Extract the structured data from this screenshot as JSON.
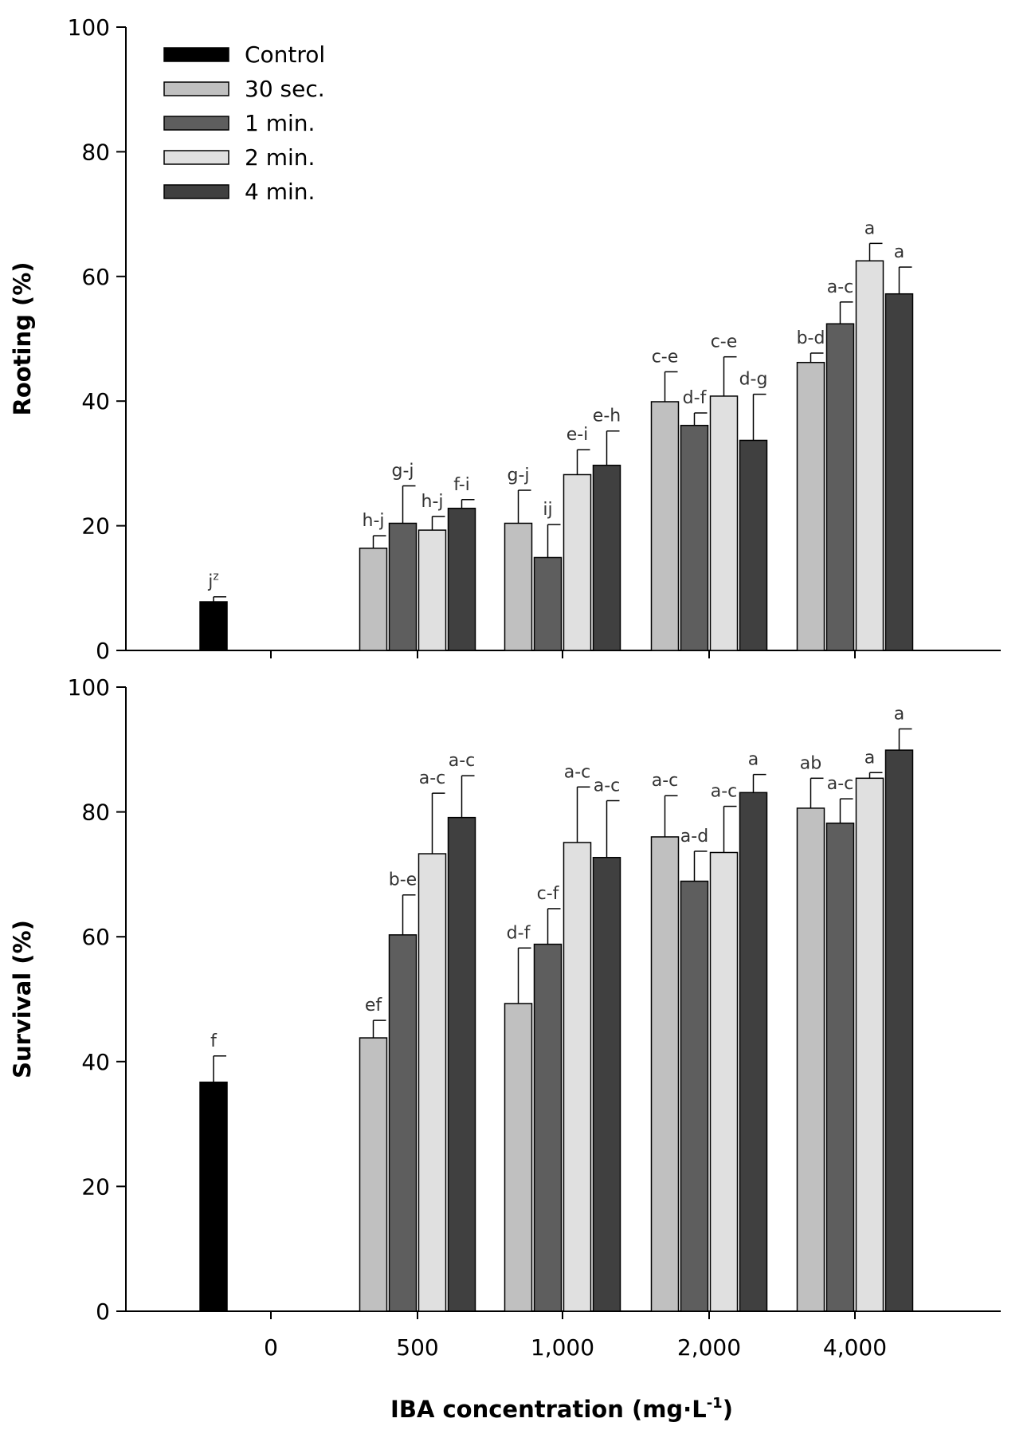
{
  "chart_data": [
    {
      "type": "bar",
      "panel": "top",
      "ylabel": "Rooting (%)",
      "ylim": [
        0,
        100
      ],
      "yticks": [
        "0",
        "20",
        "40",
        "60",
        "80",
        "100"
      ],
      "categories": [
        "0",
        "500",
        "1,000",
        "2,000",
        "4,000"
      ],
      "legend": {
        "placement": "top-left",
        "entries": [
          "Control",
          "30 sec.",
          "1 min.",
          "2 min.",
          "4 min."
        ]
      },
      "series": [
        {
          "name": "Control",
          "color": "#000000",
          "values": [
            7.8,
            null,
            null,
            null,
            null
          ],
          "errors": [
            0.8,
            null,
            null,
            null,
            null
          ],
          "labels": [
            "jz",
            null,
            null,
            null,
            null
          ]
        },
        {
          "name": "30 sec.",
          "color": "#c0c0c0",
          "values": [
            null,
            16.4,
            20.4,
            39.9,
            46.2
          ],
          "errors": [
            null,
            2.0,
            5.3,
            4.8,
            1.5
          ],
          "labels": [
            null,
            "h-j",
            "g-j",
            "c-e",
            "b-d"
          ]
        },
        {
          "name": "1 min.",
          "color": "#5e5e5e",
          "values": [
            null,
            20.4,
            14.9,
            36.1,
            52.4
          ],
          "errors": [
            null,
            6.0,
            5.3,
            2.0,
            3.5
          ],
          "labels": [
            null,
            "g-j",
            "ij",
            "d-f",
            "a-c"
          ]
        },
        {
          "name": "2 min.",
          "color": "#e0e0e0",
          "values": [
            null,
            19.3,
            28.2,
            40.8,
            62.5
          ],
          "errors": [
            null,
            2.2,
            4.0,
            6.3,
            2.8
          ],
          "labels": [
            null,
            "h-j",
            "e-i",
            "c-e",
            "a"
          ]
        },
        {
          "name": "4 min.",
          "color": "#404040",
          "values": [
            null,
            22.8,
            29.7,
            33.7,
            57.2
          ],
          "errors": [
            null,
            1.4,
            5.5,
            7.4,
            4.3
          ],
          "labels": [
            null,
            "f-i",
            "e-h",
            "d-g",
            "a"
          ]
        }
      ]
    },
    {
      "type": "bar",
      "panel": "bottom",
      "ylabel": "Survival (%)",
      "xlabel": "IBA concentration (mg·L-1)",
      "ylim": [
        0,
        100
      ],
      "yticks": [
        "0",
        "20",
        "40",
        "60",
        "80",
        "100"
      ],
      "categories": [
        "0",
        "500",
        "1,000",
        "2,000",
        "4,000"
      ],
      "series": [
        {
          "name": "Control",
          "color": "#000000",
          "values": [
            36.7,
            null,
            null,
            null,
            null
          ],
          "errors": [
            4.2,
            null,
            null,
            null,
            null
          ],
          "labels": [
            "f",
            null,
            null,
            null,
            null
          ]
        },
        {
          "name": "30 sec.",
          "color": "#c0c0c0",
          "values": [
            null,
            43.8,
            49.3,
            76.0,
            80.6
          ],
          "errors": [
            null,
            2.8,
            8.9,
            6.6,
            4.8
          ],
          "labels": [
            null,
            "ef",
            "d-f",
            "a-c",
            "ab"
          ]
        },
        {
          "name": "1 min.",
          "color": "#5e5e5e",
          "values": [
            null,
            60.3,
            58.8,
            68.9,
            78.2
          ],
          "errors": [
            null,
            6.4,
            5.7,
            4.8,
            3.9
          ],
          "labels": [
            null,
            "b-e",
            "c-f",
            "a-d",
            "a-c"
          ]
        },
        {
          "name": "2 min.",
          "color": "#e0e0e0",
          "values": [
            null,
            73.3,
            75.1,
            73.5,
            85.4
          ],
          "errors": [
            null,
            9.7,
            8.9,
            7.4,
            0.9
          ],
          "labels": [
            null,
            "a-c",
            "a-c",
            "a-c",
            "a"
          ]
        },
        {
          "name": "4 min.",
          "color": "#404040",
          "values": [
            null,
            79.1,
            72.7,
            83.1,
            89.9
          ],
          "errors": [
            null,
            6.7,
            9.1,
            2.9,
            3.4
          ],
          "labels": [
            null,
            "a-c",
            "a-c",
            "a",
            "a"
          ]
        }
      ]
    }
  ],
  "xaxis": {
    "title_main": "IBA concentration (mg·L",
    "title_sup": "-1",
    "title_end": ")"
  }
}
